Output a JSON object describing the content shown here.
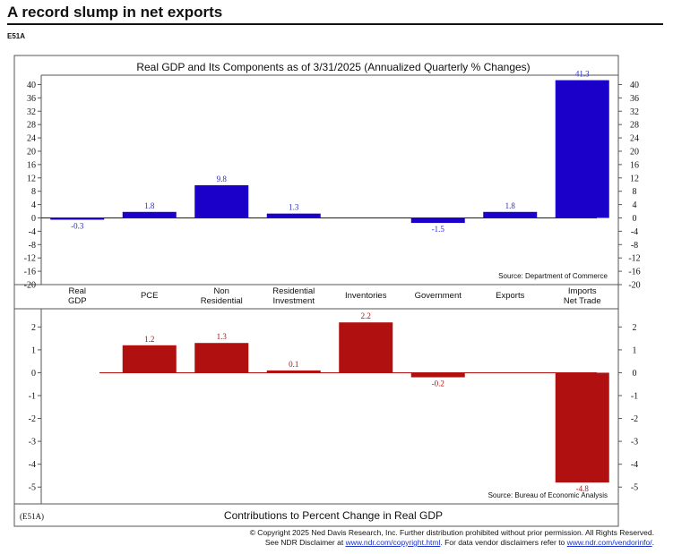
{
  "page": {
    "headline": "A record slump in net exports",
    "code": "E51A",
    "footer_code": "(E51A)",
    "copyright_line1": "© Copyright 2025 Ned Davis Research, Inc. Further distribution prohibited without prior permission. All Rights Reserved.",
    "disclaimer_prefix": "See NDR Disclaimer at ",
    "disclaimer_link1": "www.ndr.com/copyright.html",
    "disclaimer_mid": ". For data vendor disclaimers refer to ",
    "disclaimer_link2": "www.ndr.com/vendorinfo/",
    "disclaimer_suffix": "."
  },
  "chart_data": [
    {
      "type": "bar",
      "title": "Real GDP and Its Components as of 3/31/2025 (Annualized Quarterly % Changes)",
      "source": "Source: Department of Commerce",
      "categories": [
        "Real GDP",
        "PCE",
        "Non Residential",
        "Residential Investment",
        "Inventories",
        "Government",
        "Exports",
        "Imports Net Trade"
      ],
      "values": [
        -0.3,
        1.8,
        9.8,
        1.3,
        null,
        -1.5,
        1.8,
        41.3
      ],
      "value_labels": [
        "-0.3",
        "1.8",
        "9.8",
        "1.3",
        "",
        "-1.5",
        "1.8",
        "41.3"
      ],
      "ylim": [
        -20,
        42
      ],
      "yticks": [
        40,
        36,
        32,
        28,
        24,
        20,
        16,
        12,
        8,
        4,
        0,
        -4,
        -8,
        -12,
        -16,
        -20
      ],
      "color": "#1a00c8",
      "label_color": "#2a2ad0",
      "grid": false
    },
    {
      "type": "bar",
      "title": "Contributions to Percent Change in Real GDP",
      "source": "Source: Bureau of Economic Analysis",
      "categories": [
        "Real GDP",
        "PCE",
        "Non Residential",
        "Residential Investment",
        "Inventories",
        "Government",
        "Exports",
        "Imports Net Trade"
      ],
      "values": [
        null,
        1.2,
        1.3,
        0.1,
        2.2,
        -0.2,
        null,
        -4.8
      ],
      "value_labels": [
        "",
        "1.2",
        "1.3",
        "0.1",
        "2.2",
        "-0.2",
        "",
        "-4.8"
      ],
      "ylim": [
        -5.5,
        2.6
      ],
      "yticks": [
        2,
        1,
        0,
        -1,
        -2,
        -3,
        -4,
        -5
      ],
      "color": "#b01010",
      "label_color": "#b01010",
      "grid": false
    }
  ],
  "category_labels": [
    [
      "Real",
      "GDP"
    ],
    [
      "PCE"
    ],
    [
      "Non",
      "Residential"
    ],
    [
      "Residential",
      "Investment"
    ],
    [
      "Inventories"
    ],
    [
      "Government"
    ],
    [
      "Exports"
    ],
    [
      "Imports",
      "Net Trade"
    ]
  ]
}
